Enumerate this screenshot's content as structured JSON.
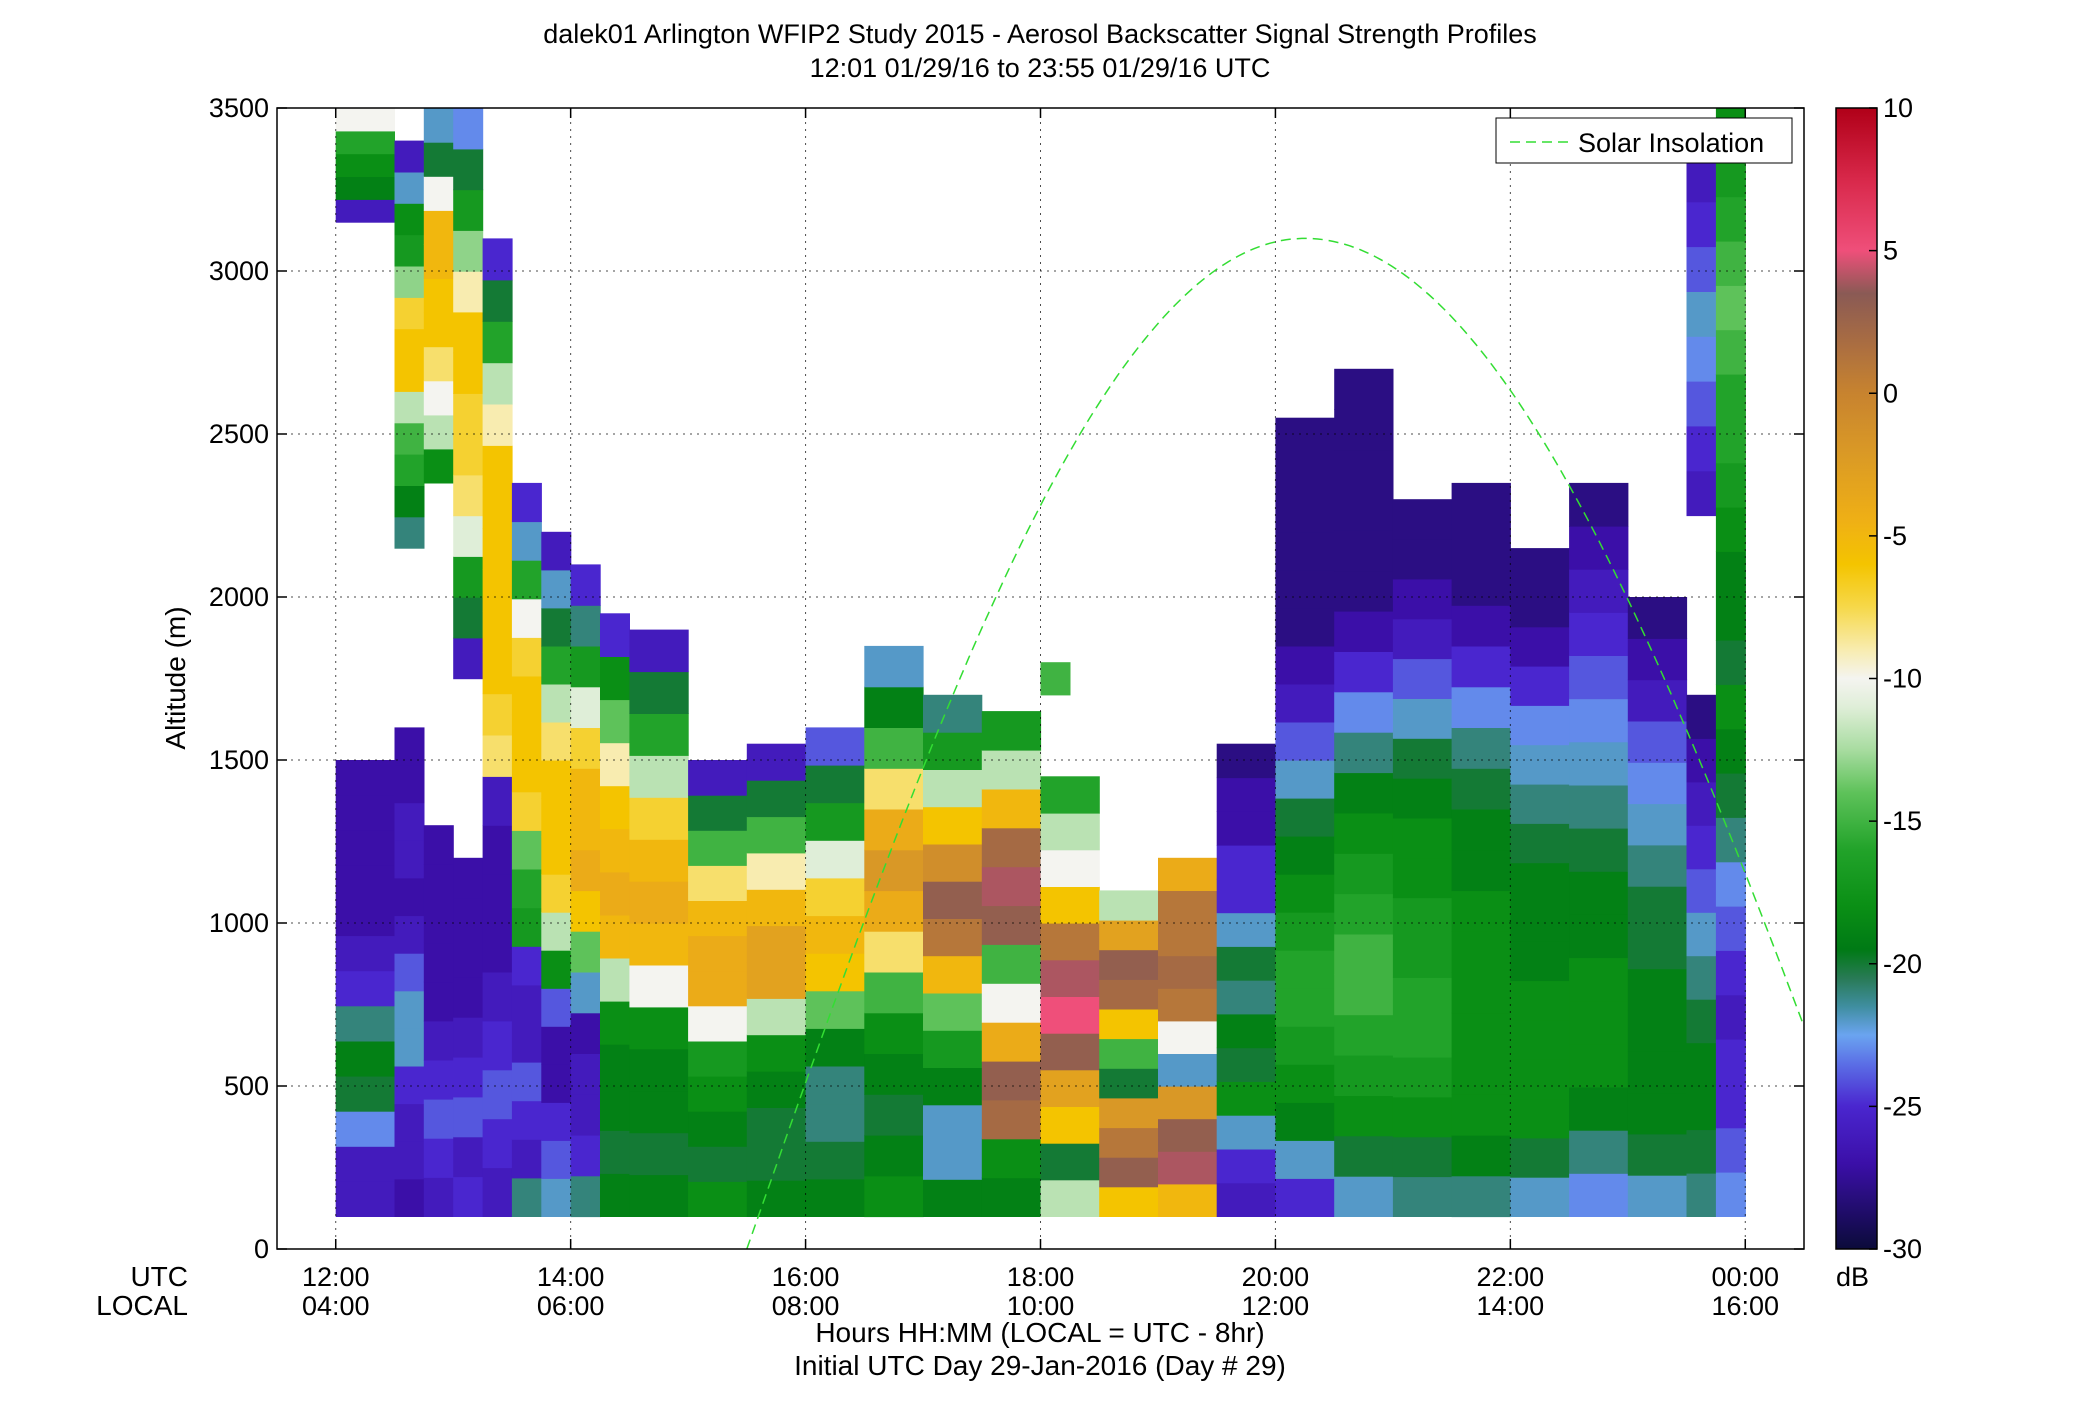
{
  "title_line1": "dalek01 Arlington WFIP2 Study 2015 - Aerosol Backscatter Signal Strength Profiles",
  "title_line2": "12:01 01/29/16 to 23:55 01/29/16  UTC",
  "chart_data": {
    "type": "heatmap",
    "ylabel": "Altitude (m)",
    "xlabel": "Hours HH:MM  (LOCAL = UTC - 8hr)",
    "xlabel2": "Initial UTC Day 29-Jan-2016 (Day # 29)",
    "x_row_labels": [
      "UTC",
      "LOCAL"
    ],
    "x_ticks_utc": [
      "12:00",
      "14:00",
      "16:00",
      "18:00",
      "20:00",
      "22:00",
      "00:00"
    ],
    "x_ticks_local": [
      "04:00",
      "06:00",
      "08:00",
      "10:00",
      "12:00",
      "14:00",
      "16:00"
    ],
    "x_tick_hours": [
      12,
      14,
      16,
      18,
      20,
      22,
      24
    ],
    "xlim_hours_utc": [
      11.5,
      24.5
    ],
    "y_ticks": [
      0,
      500,
      1000,
      1500,
      2000,
      2500,
      3000,
      3500
    ],
    "ylim": [
      0,
      3500
    ],
    "grid": true,
    "colorbar": {
      "label": "dB",
      "range": [
        -30,
        10
      ],
      "ticks": [
        -30,
        -25,
        -20,
        -15,
        -10,
        -5,
        0,
        5,
        10
      ],
      "tick_labels": [
        "-30",
        "-25",
        "-20",
        "-15",
        "-10",
        "-5",
        "0",
        "5",
        "10"
      ]
    },
    "legend": {
      "position": "top-right",
      "entries": [
        "Solar Insolation"
      ]
    },
    "solar_insolation": {
      "color": "#33dd33",
      "style": "dashed",
      "start_hour_utc": 15.5,
      "peak_hour_utc": 20.25,
      "peak_altitude_m": 3100,
      "end_hour_utc": 24.5
    },
    "profiles": [
      {
        "hour_start": 12.0,
        "hour_end": 12.5,
        "altitudes_m": [
          100,
          1500
        ],
        "dB_by_level": [
          -26,
          -26,
          -23,
          -20,
          -19,
          -21,
          -25,
          -26,
          -27,
          -27,
          -27,
          -27,
          -27
        ]
      },
      {
        "hour_start": 12.0,
        "hour_end": 12.5,
        "altitudes_m": [
          3150,
          3500
        ],
        "dB_by_level": [
          -26,
          -19,
          -18,
          -16,
          -10
        ]
      },
      {
        "hour_start": 12.5,
        "hour_end": 12.75,
        "altitudes_m": [
          100,
          1600
        ],
        "dB_by_level": [
          -27,
          -26,
          -26,
          -25,
          -22,
          -22,
          -24,
          -26,
          -27,
          -26,
          -26,
          -27,
          -27
        ]
      },
      {
        "hour_start": 12.5,
        "hour_end": 12.75,
        "altitudes_m": [
          2150,
          3400
        ],
        "dB_by_level": [
          -21,
          -19,
          -16,
          -15,
          -12,
          -6,
          -6,
          -7,
          -13,
          -17,
          -18,
          -22,
          -26
        ]
      },
      {
        "hour_start": 12.75,
        "hour_end": 13.0,
        "altitudes_m": [
          100,
          1300
        ],
        "dB_by_level": [
          -26,
          -25,
          -24,
          -25,
          -26,
          -27,
          -27,
          -27,
          -27,
          -27
        ]
      },
      {
        "hour_start": 12.75,
        "hour_end": 13.0,
        "altitudes_m": [
          2350,
          3500
        ],
        "dB_by_level": [
          -18,
          -12,
          -10,
          -8,
          -6,
          -6,
          -5,
          -5,
          -10,
          -20,
          -22
        ]
      },
      {
        "hour_start": 13.0,
        "hour_end": 13.25,
        "altitudes_m": [
          100,
          1200
        ],
        "dB_by_level": [
          -25,
          -26,
          -24,
          -25,
          -26,
          -27,
          -27,
          -27,
          -27
        ]
      },
      {
        "hour_start": 13.0,
        "hour_end": 13.25,
        "altitudes_m": [
          1750,
          3500
        ],
        "dB_by_level": [
          -26,
          -20,
          -17,
          -11,
          -8,
          -7,
          -7,
          -6,
          -6,
          -9,
          -13,
          -17,
          -20,
          -23
        ]
      },
      {
        "hour_start": 13.25,
        "hour_end": 13.5,
        "altitudes_m": [
          100,
          1450
        ],
        "dB_by_level": [
          -26,
          -25,
          -24,
          -25,
          -26,
          -27,
          -27,
          -27,
          -26
        ]
      },
      {
        "hour_start": 13.25,
        "hour_end": 13.5,
        "altitudes_m": [
          1450,
          3100
        ],
        "dB_by_level": [
          -8,
          -7,
          -6,
          -6,
          -6,
          -6,
          -6,
          -6,
          -9,
          -12,
          -16,
          -20,
          -25
        ]
      },
      {
        "hour_start": 13.5,
        "hour_end": 13.75,
        "altitudes_m": [
          100,
          2350
        ],
        "dB_by_level": [
          -21,
          -26,
          -25,
          -24,
          -26,
          -26,
          -25,
          -17,
          -16,
          -14,
          -7,
          -6,
          -6,
          -6,
          -7,
          -10,
          -16,
          -22,
          -25
        ]
      },
      {
        "hour_start": 13.75,
        "hour_end": 14.0,
        "altitudes_m": [
          100,
          2200
        ],
        "dB_by_level": [
          -22,
          -24,
          -25,
          -27,
          -27,
          -24,
          -18,
          -12,
          -7,
          -6,
          -6,
          -6,
          -8,
          -12,
          -16,
          -20,
          -22,
          -26
        ]
      },
      {
        "hour_start": 14.0,
        "hour_end": 14.25,
        "altitudes_m": [
          100,
          2100
        ],
        "dB_by_level": [
          -21,
          -25,
          -26,
          -26,
          -27,
          -22,
          -14,
          -6,
          -4,
          -5,
          -5,
          -7,
          -11,
          -17,
          -21,
          -25
        ]
      },
      {
        "hour_start": 14.25,
        "hour_end": 14.5,
        "altitudes_m": [
          100,
          1950
        ],
        "dB_by_level": [
          -19,
          -20,
          -19,
          -19,
          -18,
          -12,
          -5,
          -4,
          -5,
          -6,
          -9,
          -14,
          -18,
          -25
        ]
      },
      {
        "hour_start": 14.5,
        "hour_end": 15.0,
        "altitudes_m": [
          100,
          1900
        ],
        "dB_by_level": [
          -19,
          -20,
          -19,
          -19,
          -18,
          -10,
          -5,
          -4,
          -5,
          -7,
          -12,
          -16,
          -20,
          -26
        ]
      },
      {
        "hour_start": 15.0,
        "hour_end": 15.5,
        "altitudes_m": [
          100,
          1500
        ],
        "dB_by_level": [
          -18,
          -20,
          -19,
          -18,
          -17,
          -10,
          -4,
          -4,
          -5,
          -8,
          -15,
          -20,
          -26
        ]
      },
      {
        "hour_start": 15.5,
        "hour_end": 16.0,
        "altitudes_m": [
          100,
          1550
        ],
        "dB_by_level": [
          -19,
          -20,
          -20,
          -19,
          -18,
          -12,
          -3,
          -3,
          -5,
          -9,
          -15,
          -20,
          -26
        ]
      },
      {
        "hour_start": 16.0,
        "hour_end": 16.5,
        "altitudes_m": [
          100,
          1600
        ],
        "dB_by_level": [
          -19,
          -20,
          -21,
          -21,
          -19,
          -14,
          -6,
          -5,
          -7,
          -11,
          -17,
          -20,
          -24
        ]
      },
      {
        "hour_start": 16.5,
        "hour_end": 17.0,
        "altitudes_m": [
          100,
          1850
        ],
        "dB_by_level": [
          -18,
          -19,
          -20,
          -19,
          -18,
          -15,
          -8,
          -4,
          -2,
          -4,
          -8,
          -15,
          -19,
          -22
        ]
      },
      {
        "hour_start": 17.0,
        "hour_end": 17.5,
        "altitudes_m": [
          100,
          1700
        ],
        "dB_by_level": [
          -19,
          -22,
          -22,
          -19,
          -17,
          -14,
          -5,
          1,
          3,
          -1,
          -6,
          -12,
          -17,
          -21
        ]
      },
      {
        "hour_start": 17.5,
        "hour_end": 18.0,
        "altitudes_m": [
          100,
          1650
        ],
        "dB_by_level": [
          -19,
          -18,
          2,
          3,
          -4,
          -10,
          -15,
          3,
          4,
          2,
          -5,
          -12,
          -17
        ]
      },
      {
        "hour_start": 18.0,
        "hour_end": 18.5,
        "altitudes_m": [
          100,
          1450
        ],
        "dB_by_level": [
          -12,
          -20,
          -6,
          -3,
          3,
          5,
          4,
          1,
          -6,
          -10,
          -12,
          -16
        ]
      },
      {
        "hour_start": 18.0,
        "hour_end": 18.25,
        "altitudes_m": [
          1700,
          1800
        ],
        "dB_by_level": [
          -15
        ]
      },
      {
        "hour_start": 18.5,
        "hour_end": 19.0,
        "altitudes_m": [
          100,
          1100
        ],
        "dB_by_level": [
          -6,
          3,
          1,
          -2,
          -20,
          -15,
          -6,
          2,
          3,
          -3,
          -12
        ]
      },
      {
        "hour_start": 19.0,
        "hour_end": 19.5,
        "altitudes_m": [
          100,
          1200
        ],
        "dB_by_level": [
          -5,
          4,
          3,
          -2,
          -22,
          -10,
          1,
          2,
          1,
          1,
          -4
        ]
      },
      {
        "hour_start": 19.5,
        "hour_end": 20.0,
        "altitudes_m": [
          100,
          1550
        ],
        "dB_by_level": [
          -26,
          -25,
          -22,
          -18,
          -20,
          -19,
          -21,
          -20,
          -22,
          -25,
          -25,
          -27,
          -27,
          -28
        ]
      },
      {
        "hour_start": 20.0,
        "hour_end": 20.5,
        "altitudes_m": [
          100,
          2550
        ],
        "dB_by_level": [
          -25,
          -22,
          -19,
          -18,
          -17,
          -16,
          -16,
          -17,
          -18,
          -19,
          -20,
          -22,
          -24,
          -26,
          -27,
          -28,
          -28,
          -28,
          -28,
          -28,
          -28
        ]
      },
      {
        "hour_start": 20.5,
        "hour_end": 21.0,
        "altitudes_m": [
          100,
          2700
        ],
        "dB_by_level": [
          -22,
          -20,
          -18,
          -17,
          -16,
          -15,
          -15,
          -16,
          -17,
          -18,
          -19,
          -21,
          -23,
          -25,
          -27,
          -28,
          -28,
          -28,
          -28,
          -28,
          -28
        ]
      },
      {
        "hour_start": 21.0,
        "hour_end": 21.5,
        "altitudes_m": [
          100,
          2300
        ],
        "dB_by_level": [
          -21,
          -20,
          -18,
          -17,
          -16,
          -16,
          -17,
          -17,
          -18,
          -18,
          -19,
          -20,
          -22,
          -24,
          -26,
          -27,
          -28,
          -28
        ]
      },
      {
        "hour_start": 21.5,
        "hour_end": 22.0,
        "altitudes_m": [
          100,
          2350
        ],
        "dB_by_level": [
          -21,
          -19,
          -18,
          -18,
          -18,
          -18,
          -18,
          -18,
          -19,
          -19,
          -20,
          -21,
          -23,
          -25,
          -27,
          -28,
          -28,
          -28
        ]
      },
      {
        "hour_start": 22.0,
        "hour_end": 22.5,
        "altitudes_m": [
          100,
          2150
        ],
        "dB_by_level": [
          -22,
          -20,
          -18,
          -18,
          -18,
          -18,
          -19,
          -19,
          -19,
          -20,
          -21,
          -22,
          -23,
          -25,
          -27,
          -28,
          -28
        ]
      },
      {
        "hour_start": 22.5,
        "hour_end": 23.0,
        "altitudes_m": [
          100,
          2350
        ],
        "dB_by_level": [
          -23,
          -21,
          -19,
          -18,
          -18,
          -18,
          -19,
          -19,
          -20,
          -21,
          -22,
          -23,
          -24,
          -25,
          -26,
          -27,
          -28
        ]
      },
      {
        "hour_start": 23.0,
        "hour_end": 23.5,
        "altitudes_m": [
          100,
          2000
        ],
        "dB_by_level": [
          -22,
          -20,
          -19,
          -19,
          -19,
          -19,
          -20,
          -20,
          -21,
          -22,
          -23,
          -24,
          -26,
          -27,
          -28
        ]
      },
      {
        "hour_start": 23.5,
        "hour_end": 23.75,
        "altitudes_m": [
          100,
          1700
        ],
        "dB_by_level": [
          -21,
          -20,
          -19,
          -19,
          -20,
          -21,
          -22,
          -24,
          -25,
          -26,
          -27,
          -28
        ]
      },
      {
        "hour_start": 23.5,
        "hour_end": 23.75,
        "altitudes_m": [
          2250,
          3350
        ],
        "dB_by_level": [
          -26,
          -25,
          -24,
          -23,
          -22,
          -24,
          -25,
          -26
        ]
      },
      {
        "hour_start": 23.75,
        "hour_end": 24.0,
        "altitudes_m": [
          100,
          3500
        ],
        "dB_by_level": [
          -23,
          -24,
          -25,
          -25,
          -26,
          -25,
          -24,
          -23,
          -21,
          -20,
          -19,
          -18,
          -20,
          -19,
          -19,
          -18,
          -17,
          -16,
          -16,
          -15,
          -14,
          -15,
          -16,
          -17,
          -18
        ]
      }
    ]
  }
}
